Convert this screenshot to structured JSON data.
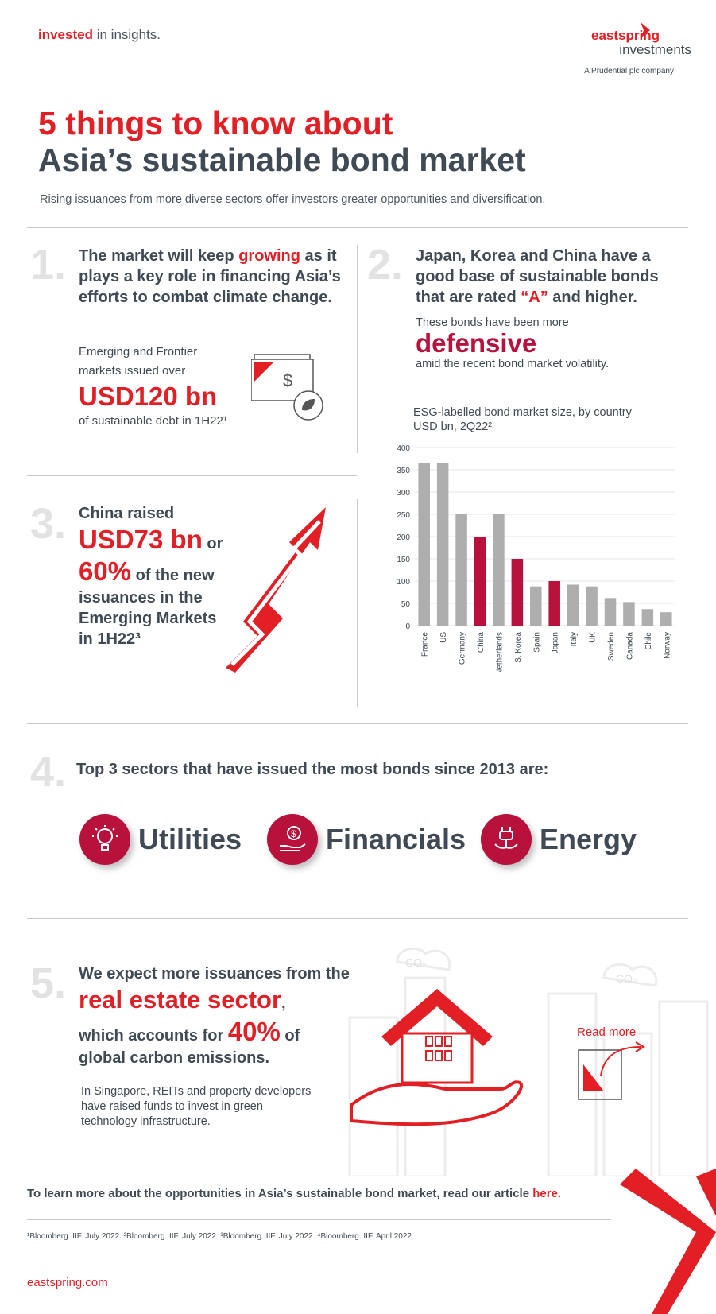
{
  "header": {
    "tagline_red": "invested",
    "tagline_rest": " in insights.",
    "logo_line1": "eastspring",
    "logo_line2": "investments",
    "logo_sub": "A Prudential plc company"
  },
  "title": {
    "line1": "5 things to know about",
    "line2": "Asia’s sustainable bond market",
    "subtitle": "Rising issuances from more diverse sectors offer investors greater opportunities and diversification."
  },
  "s1": {
    "num": "1.",
    "h_a": "The market will keep ",
    "h_b": "growing",
    "h_c": " as it plays a key role in financing Asia’s efforts to combat climate change.",
    "p1": "Emerging and Frontier",
    "p2": "markets issued over",
    "big": "USD120 bn",
    "p3": "of sustainable debt in 1H22¹"
  },
  "s2": {
    "num": "2.",
    "h_a": "Japan, Korea and China have a good base of sustainable bonds that are rated ",
    "h_b": "“A”",
    "h_c": " and higher.",
    "p1": "These bonds have been more",
    "big": "defensive",
    "p2": "amid the recent bond market volatility."
  },
  "s3": {
    "num": "3.",
    "l1": "China raised",
    "big1": "USD73 bn",
    "or": " or",
    "big2": "60%",
    "l2": " of the new",
    "l3": "issuances in the",
    "l4": "Emerging Markets",
    "l5": "in 1H22³"
  },
  "chart_data": {
    "type": "bar",
    "title": "ESG-labelled bond market size, by country",
    "subtitle": "USD bn, 2Q22²",
    "categories": [
      "France",
      "US",
      "Germany",
      "China",
      "Netherlands",
      "S. Korea",
      "Spain",
      "Japan",
      "Italy",
      "UK",
      "Sweden",
      "Canada",
      "Chile",
      "Norway"
    ],
    "values": [
      365,
      365,
      250,
      200,
      250,
      150,
      88,
      100,
      92,
      88,
      62,
      53,
      37,
      30
    ],
    "highlight": [
      "China",
      "S. Korea",
      "Japan"
    ],
    "highlight_color": "#b8123c",
    "base_color": "#aeaeae",
    "yticks": [
      0,
      50,
      100,
      150,
      200,
      250,
      300,
      350,
      400
    ],
    "ylim": [
      0,
      400
    ],
    "grid": true
  },
  "s4": {
    "num": "4.",
    "heading": "Top 3 sectors that have issued the most bonds since 2013 are:",
    "sectors": [
      {
        "label": "Utilities",
        "icon": "lightbulb-icon"
      },
      {
        "label": "Financials",
        "icon": "money-hand-icon"
      },
      {
        "label": "Energy",
        "icon": "power-plug-icon"
      }
    ]
  },
  "s5": {
    "num": "5.",
    "l1": "We expect more issuances from the",
    "big1": "real estate sector",
    "comma": ",",
    "l2a": "which accounts for ",
    "big2": "40%",
    "l2b": " of",
    "l3": "global carbon emissions.",
    "p": "In Singapore, REITs and property developers have raised funds to invest in green technology infrastructure.",
    "read_more": "Read more",
    "co2": "CO₂"
  },
  "footer": {
    "cta_a": "To learn more about the opportunities in Asia’s sustainable bond market, read our article ",
    "cta_link": "here.",
    "notes": "¹Bloomberg. IIF. July 2022. ²Bloomberg. IIF. July 2022.  ³Bloomberg. IIF. July 2022. ⁴Bloomberg. IIF. April 2022.",
    "site": "eastspring.com"
  },
  "colors": {
    "red": "#e31f26",
    "crimson": "#b8123c",
    "dark": "#3f4a54"
  }
}
